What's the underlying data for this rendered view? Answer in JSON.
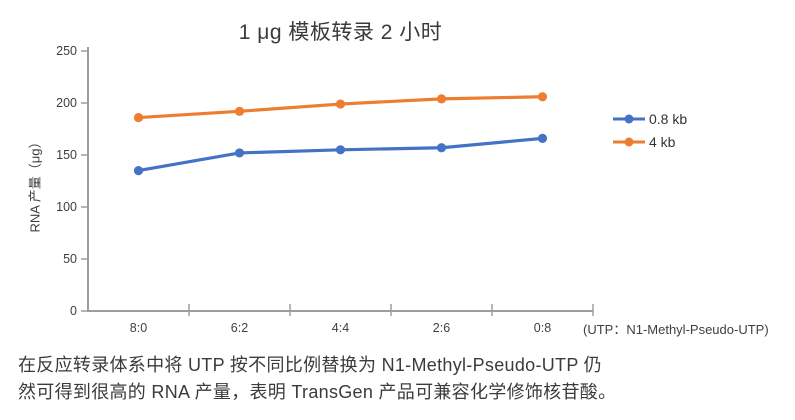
{
  "title": "1 μg 模板转录 2 小时",
  "chart_data": {
    "type": "line",
    "title": "1 μg 模板转录 2 小时",
    "categories": [
      "8:0",
      "6:2",
      "4:4",
      "2:6",
      "0:8"
    ],
    "series": [
      {
        "name": "0.8 kb",
        "color": "#4472C4",
        "values": [
          135,
          152,
          155,
          157,
          166
        ]
      },
      {
        "name": "4 kb",
        "color": "#ED7D31",
        "values": [
          186,
          192,
          199,
          204,
          206
        ]
      }
    ],
    "xlabel": "",
    "ylabel": "RNA 产量（μg）",
    "xlabel_note": "(UTP：N1-Methyl-Pseudo-UTP)",
    "ylim": [
      0,
      250
    ],
    "yticks": [
      0,
      50,
      100,
      150,
      200,
      250
    ],
    "grid": false,
    "legend_position": "right",
    "marker": "circle"
  },
  "caption": {
    "line1": "在反应转录体系中将 UTP 按不同比例替换为 N1-Methyl-Pseudo-UTP 仍",
    "line2": "然可得到很高的 RNA 产量，表明 TransGen 产品可兼容化学修饰核苷酸。"
  },
  "colors": {
    "axis": "#9e9e9e",
    "tick_text": "#3f3f3f",
    "title_text": "#3a3a3a",
    "series_blue": "#4472C4",
    "series_orange": "#ED7D31"
  }
}
